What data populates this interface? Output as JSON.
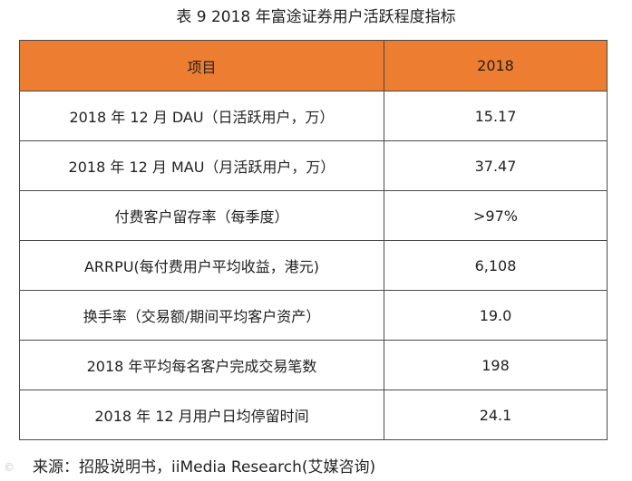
{
  "caption": "表 9   2018 年富途证券用户活跃程度指标",
  "table": {
    "headers": [
      "项目",
      "2018"
    ],
    "rows": [
      {
        "item": "2018 年 12 月 DAU（日活跃用户，万）",
        "value": "15.17"
      },
      {
        "item": "2018 年 12 月 MAU（月活跃用户，万）",
        "value": "37.47"
      },
      {
        "item": "付费客户留存率（每季度）",
        "value": ">97%"
      },
      {
        "item": "ARRPU(每付费用户平均收益，港元)",
        "value": "6,108"
      },
      {
        "item": "换手率（交易额/期间平均客户资产）",
        "value": "19.0"
      },
      {
        "item": "2018 年平均每名客户完成交易笔数",
        "value": "198"
      },
      {
        "item": "2018 年 12 月用户日均停留时间",
        "value": "24.1"
      }
    ]
  },
  "source": "来源：招股说明书，iiMedia Research(艾媒咨询)",
  "watermark": "©"
}
